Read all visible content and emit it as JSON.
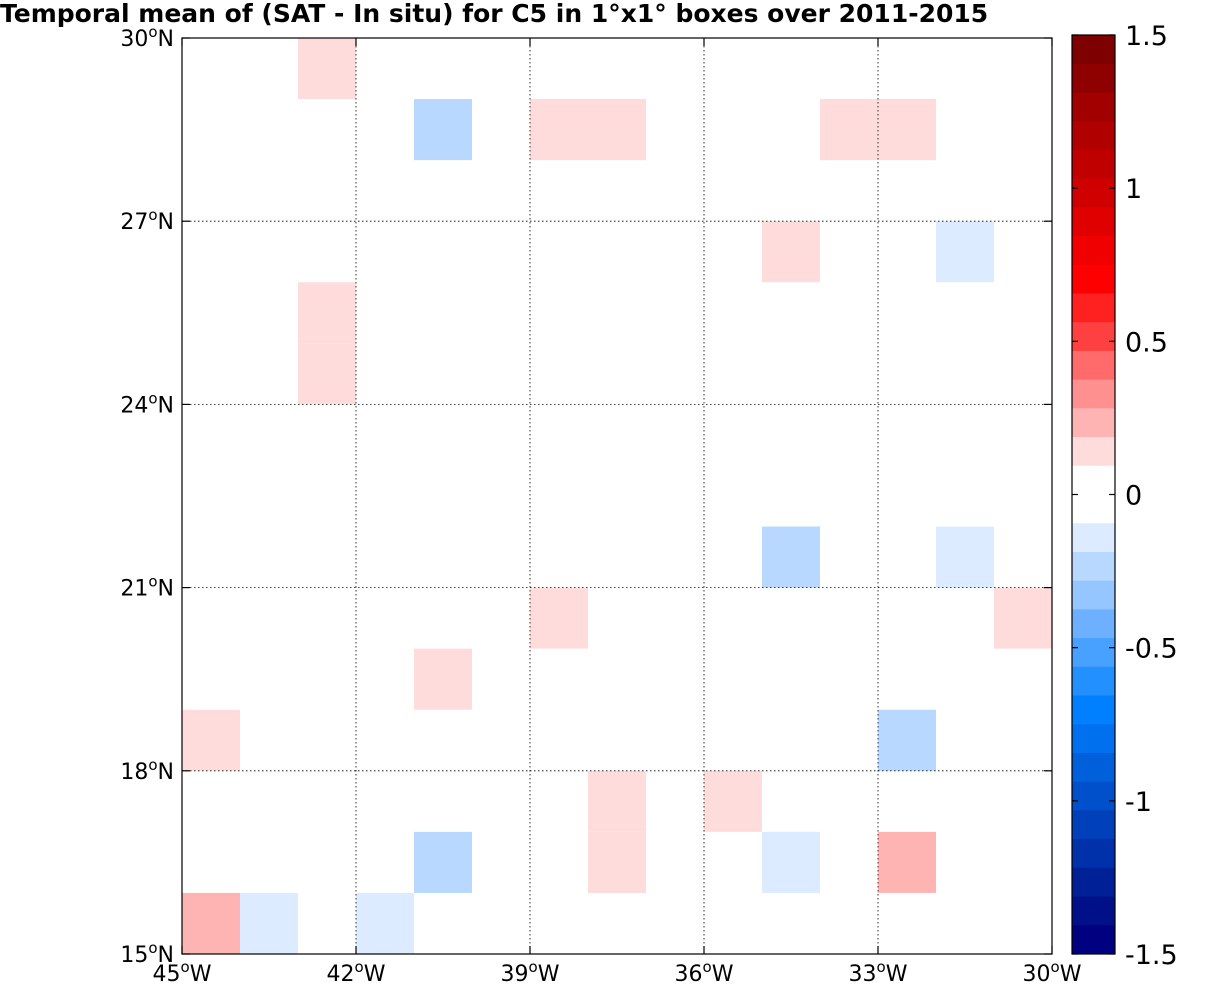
{
  "chart_data": {
    "type": "heatmap",
    "title": "Temporal mean of (SAT - In situ) for C5 in 1°x1° boxes over 2011-2015",
    "xlim": [
      -45,
      -30
    ],
    "ylim": [
      15,
      30
    ],
    "x_ticks": [
      {
        "value": -45,
        "num": "45",
        "unit": "o",
        "hemi": "W"
      },
      {
        "value": -42,
        "num": "42",
        "unit": "o",
        "hemi": "W"
      },
      {
        "value": -39,
        "num": "39",
        "unit": "o",
        "hemi": "W"
      },
      {
        "value": -36,
        "num": "36",
        "unit": "o",
        "hemi": "W"
      },
      {
        "value": -33,
        "num": "33",
        "unit": "o",
        "hemi": "W"
      },
      {
        "value": -30,
        "num": "30",
        "unit": "o",
        "hemi": "W"
      }
    ],
    "y_ticks": [
      {
        "value": 15,
        "num": "15",
        "unit": "o",
        "hemi": "N"
      },
      {
        "value": 18,
        "num": "18",
        "unit": "o",
        "hemi": "N"
      },
      {
        "value": 21,
        "num": "21",
        "unit": "o",
        "hemi": "N"
      },
      {
        "value": 24,
        "num": "24",
        "unit": "o",
        "hemi": "N"
      },
      {
        "value": 27,
        "num": "27",
        "unit": "o",
        "hemi": "N"
      },
      {
        "value": 30,
        "num": "30",
        "unit": "o",
        "hemi": "N"
      }
    ],
    "grid": true,
    "colorbar": {
      "range": [
        -1.5,
        1.5
      ],
      "ticks": [
        "1.5",
        "1",
        "0.5",
        "0",
        "-0.5",
        "-1",
        "-1.5"
      ],
      "tick_values": [
        1.5,
        1,
        0.5,
        0,
        -0.5,
        -1,
        -1.5
      ],
      "colors_top_to_bottom": [
        "#7f0000",
        "#8f0000",
        "#a00000",
        "#b00000",
        "#c00000",
        "#d00000",
        "#e00000",
        "#f00000",
        "#ff0000",
        "#ff2020",
        "#ff4040",
        "#ff6a6a",
        "#ff9090",
        "#ffb4b4",
        "#ffdcdc",
        "#ffffff",
        "#ffffff",
        "#dcebff",
        "#b8d8ff",
        "#96c6ff",
        "#6cb0ff",
        "#48a0ff",
        "#2290ff",
        "#0080ff",
        "#0070ee",
        "#0060dc",
        "#0050cc",
        "#0040bb",
        "#0030aa",
        "#002098",
        "#001088",
        "#000080"
      ]
    },
    "cells": [
      {
        "lon": -43,
        "lat": 29,
        "value": 0.1
      },
      {
        "lon": -41,
        "lat": 28,
        "value": -0.2
      },
      {
        "lon": -39,
        "lat": 28,
        "value": 0.1
      },
      {
        "lon": -38,
        "lat": 28,
        "value": 0.1
      },
      {
        "lon": -34,
        "lat": 28,
        "value": 0.1
      },
      {
        "lon": -33,
        "lat": 28,
        "value": 0.1
      },
      {
        "lon": -35,
        "lat": 26,
        "value": 0.1
      },
      {
        "lon": -32,
        "lat": 26,
        "value": -0.1
      },
      {
        "lon": -43,
        "lat": 25,
        "value": 0.1
      },
      {
        "lon": -43,
        "lat": 24,
        "value": 0.1
      },
      {
        "lon": -35,
        "lat": 21,
        "value": -0.2
      },
      {
        "lon": -32,
        "lat": 21,
        "value": -0.1
      },
      {
        "lon": -39,
        "lat": 20,
        "value": 0.1
      },
      {
        "lon": -31,
        "lat": 20,
        "value": 0.1
      },
      {
        "lon": -41,
        "lat": 19,
        "value": 0.1
      },
      {
        "lon": -45,
        "lat": 18,
        "value": 0.1
      },
      {
        "lon": -33,
        "lat": 18,
        "value": -0.2
      },
      {
        "lon": -38,
        "lat": 17,
        "value": 0.1
      },
      {
        "lon": -36,
        "lat": 17,
        "value": 0.1
      },
      {
        "lon": -41,
        "lat": 16,
        "value": -0.2
      },
      {
        "lon": -38,
        "lat": 16,
        "value": 0.1
      },
      {
        "lon": -35,
        "lat": 16,
        "value": -0.1
      },
      {
        "lon": -33,
        "lat": 16,
        "value": 0.2
      },
      {
        "lon": -45,
        "lat": 15,
        "value": 0.2
      },
      {
        "lon": -44,
        "lat": 15,
        "value": -0.1
      },
      {
        "lon": -42,
        "lat": 15,
        "value": -0.1
      }
    ]
  }
}
